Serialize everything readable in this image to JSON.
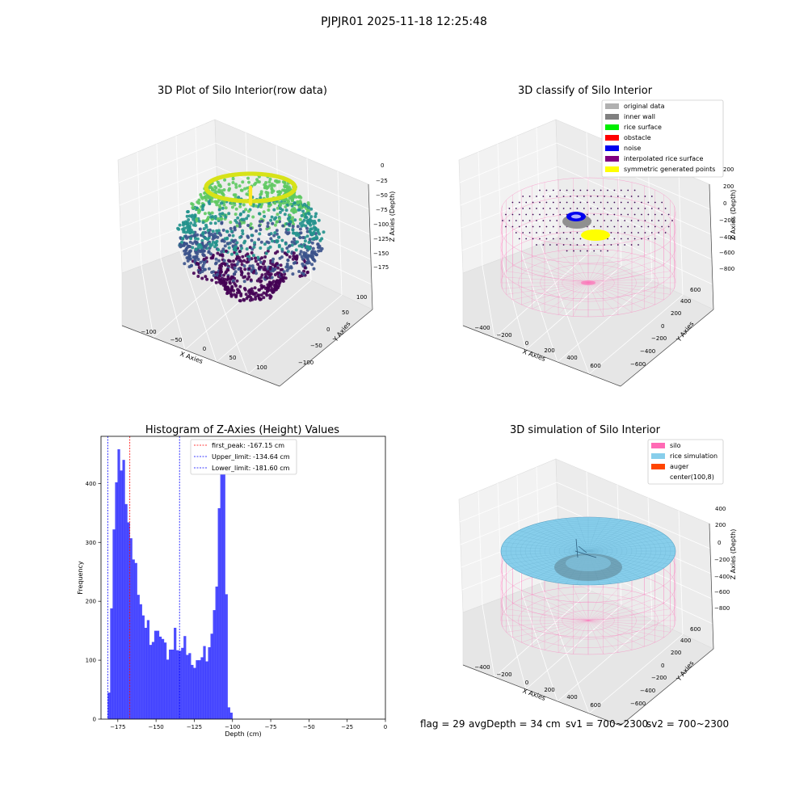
{
  "figure": {
    "suptitle": "PJPJR01 2025-11-18 12:25:48"
  },
  "chart_data": [
    {
      "type": "scatter",
      "title": "3D Plot of Silo Interior(row data)",
      "xlabel": "X Axies",
      "ylabel": "Y Axies",
      "zlabel": "Z Axies (Depth)",
      "x_ticks": [
        "−100",
        "−50",
        "0",
        "50",
        "100"
      ],
      "y_ticks": [
        "−100",
        "−50",
        "0",
        "50",
        "100"
      ],
      "z_ticks": [
        "0",
        "−25",
        "−50",
        "−75",
        "−100",
        "−125",
        "−150",
        "−175"
      ],
      "colormap": [
        "#440154",
        "#3b528b",
        "#21918c",
        "#5ec962",
        "#fde725"
      ]
    },
    {
      "type": "scatter",
      "title": "3D classify of Silo Interior",
      "xlabel": "X Axies",
      "ylabel": "Y Axies",
      "zlabel": "Z Axies (Depth)",
      "x_ticks": [
        "−400",
        "−200",
        "0",
        "200",
        "400",
        "600"
      ],
      "y_ticks": [
        "−600",
        "−400",
        "−200",
        "0",
        "200",
        "400",
        "600"
      ],
      "z_ticks": [
        "200",
        "0",
        "−200",
        "−400",
        "−600",
        "−800"
      ],
      "legend": [
        {
          "name": "original data",
          "color": "#b0b0b0"
        },
        {
          "name": "inner wall",
          "color": "#808080"
        },
        {
          "name": "rice surface",
          "color": "#00ee00"
        },
        {
          "name": "obstacle",
          "color": "#ff0000"
        },
        {
          "name": "noise",
          "color": "#0000ee"
        },
        {
          "name": "interpolated rice surface",
          "color": "#800080"
        },
        {
          "name": "symmetric generated points",
          "color": "#ffff00"
        }
      ]
    },
    {
      "type": "bar",
      "title": "Histogram of Z-Axies (Height) Values",
      "xlabel": "Depth (cm)",
      "ylabel": "Frequency",
      "xlim": [
        -186,
        0
      ],
      "ylim": [
        0,
        480
      ],
      "x_ticks": [
        -175,
        -150,
        -125,
        -100,
        -75,
        -50,
        -25,
        0
      ],
      "x_tick_labels": [
        "−175",
        "−150",
        "−125",
        "−100",
        "−75",
        "−50",
        "−25",
        "0"
      ],
      "y_ticks": [
        0,
        100,
        200,
        300,
        400
      ],
      "bin_start": -181.6,
      "bin_width": 1.6,
      "bar_color": "#0000ff",
      "values": [
        45,
        188,
        322,
        402,
        458,
        422,
        440,
        365,
        334,
        307,
        271,
        265,
        211,
        195,
        176,
        155,
        168,
        126,
        131,
        150,
        150,
        140,
        136,
        130,
        101,
        118,
        118,
        155,
        117,
        116,
        121,
        141,
        109,
        112,
        92,
        87,
        100,
        100,
        105,
        124,
        98,
        122,
        145,
        185,
        225,
        358,
        432,
        440,
        212,
        20,
        11
      ],
      "vlines": [
        {
          "x": -167.15,
          "color": "#ff0000",
          "label": "first_peak: -167.15 cm"
        },
        {
          "x": -134.64,
          "color": "#0000ff",
          "label": "Upper_limit: -134.64 cm"
        },
        {
          "x": -181.6,
          "color": "#0000ff",
          "label": "Lower_limit: -181.60 cm"
        }
      ],
      "legend_position": "top-center"
    },
    {
      "type": "surface",
      "title": "3D simulation of Silo Interior",
      "xlabel": "X Axies",
      "ylabel": "Y Axies",
      "zlabel": "Z Axies (Depth)",
      "x_ticks": [
        "−400",
        "−200",
        "0",
        "200",
        "400",
        "600"
      ],
      "y_ticks": [
        "−600",
        "−400",
        "−200",
        "0",
        "200",
        "400",
        "600"
      ],
      "z_ticks": [
        "400",
        "200",
        "0",
        "−200",
        "−400",
        "−600",
        "−800"
      ],
      "legend": [
        {
          "name": "silo",
          "color": "#ff69b4"
        },
        {
          "name": "rice simulation",
          "color": "#87ceeb"
        },
        {
          "name": "auger",
          "color": "#ff4500"
        },
        {
          "name": "center(100,8)",
          "color": "#ffffff"
        }
      ]
    }
  ],
  "status": {
    "flag": "flag = 29",
    "avg_depth": "avgDepth = 34 cm",
    "sv1": "sv1 = 700~2300",
    "sv2": "sv2 = 700~2300"
  }
}
